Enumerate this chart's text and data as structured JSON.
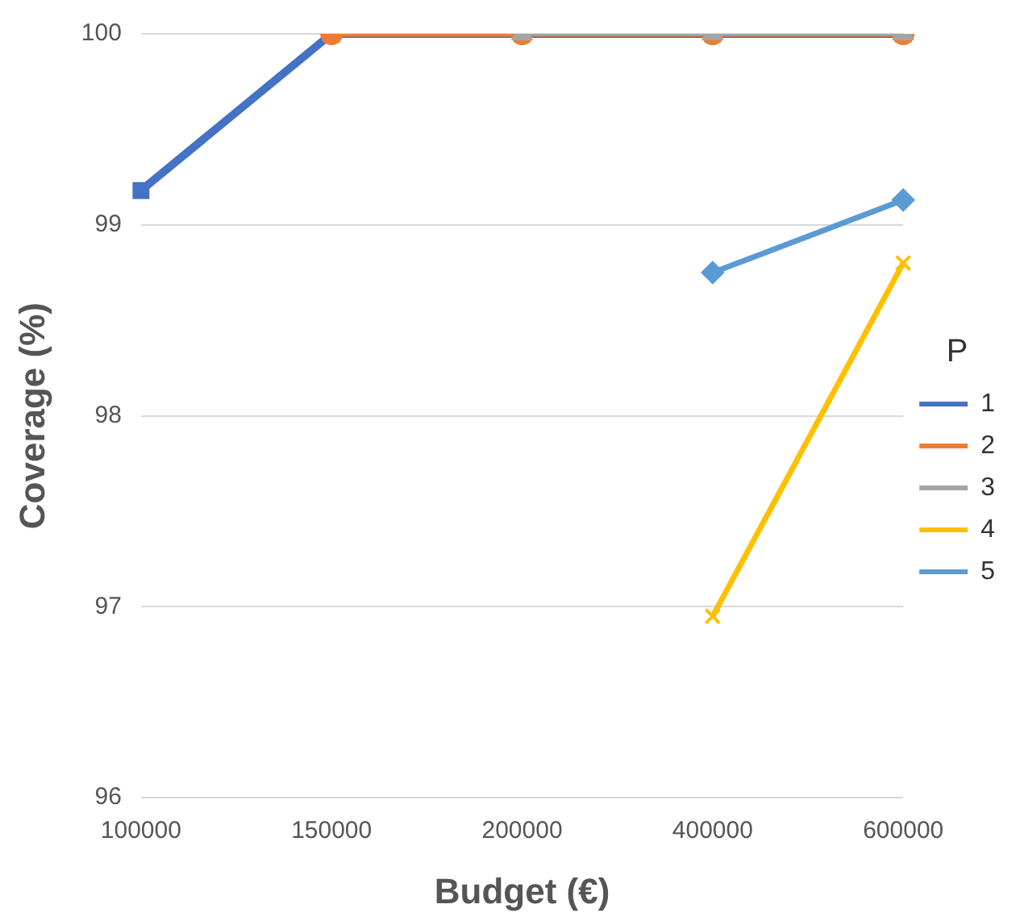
{
  "chart_data": {
    "type": "line",
    "xlabel": "Budget (€)",
    "ylabel": "Coverage (%)",
    "legend_title": "P",
    "categories": [
      "100000",
      "150000",
      "200000",
      "400000",
      "600000"
    ],
    "series": [
      {
        "name": "1",
        "color": "#4472c4",
        "marker": "square",
        "values": [
          99.18,
          100,
          100,
          100,
          100
        ]
      },
      {
        "name": "2",
        "color": "#ed7d31",
        "marker": "circle",
        "values": [
          null,
          100,
          100,
          100,
          100
        ]
      },
      {
        "name": "3",
        "color": "#a5a5a5",
        "marker": "triangle",
        "values": [
          null,
          null,
          100,
          100,
          100
        ]
      },
      {
        "name": "4",
        "color": "#ffc000",
        "marker": "cross",
        "values": [
          null,
          null,
          null,
          96.95,
          98.8
        ]
      },
      {
        "name": "5",
        "color": "#5b9bd5",
        "marker": "diamond",
        "values": [
          null,
          null,
          null,
          98.75,
          99.13
        ]
      }
    ],
    "ylim": [
      96,
      100
    ],
    "yticks": [
      96,
      97,
      98,
      99,
      100
    ],
    "grid": "y",
    "legend": "right"
  }
}
